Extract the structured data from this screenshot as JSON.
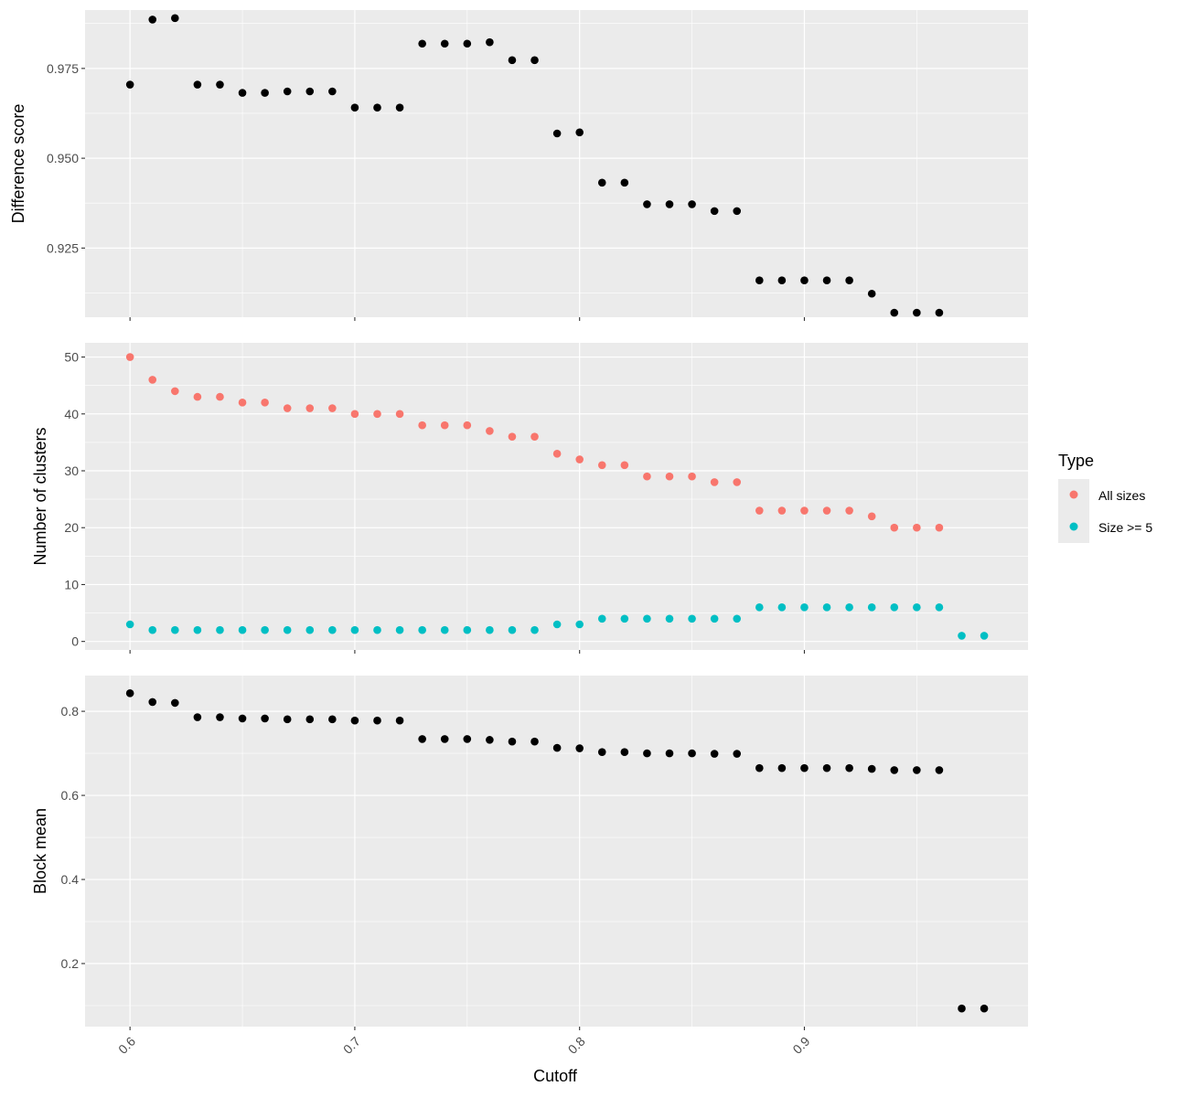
{
  "chart_data": {
    "type": "scatter",
    "xlabel": "Cutoff",
    "xlim": [
      0.58,
      0.9995
    ],
    "x_ticks": [
      0.6,
      0.7,
      0.8,
      0.9
    ],
    "x_tick_labels": [
      "0.6",
      "0.7",
      "0.8",
      "0.9"
    ],
    "panels": [
      {
        "id": "difference",
        "ylabel": "Difference score",
        "ylim": [
          0.90575,
          0.99125
        ],
        "y_ticks": [
          0.925,
          0.95,
          0.975
        ],
        "y_tick_labels": [
          "0.925",
          "0.950",
          "0.975"
        ],
        "series": [
          {
            "color": "#000000",
            "points": [
              [
                0.6,
                0.9705
              ],
              [
                0.61,
                0.9886
              ],
              [
                0.62,
                0.989
              ],
              [
                0.63,
                0.9705
              ],
              [
                0.64,
                0.9705
              ],
              [
                0.65,
                0.9682
              ],
              [
                0.66,
                0.9682
              ],
              [
                0.67,
                0.9686
              ],
              [
                0.68,
                0.9686
              ],
              [
                0.69,
                0.9686
              ],
              [
                0.7,
                0.9641
              ],
              [
                0.71,
                0.9641
              ],
              [
                0.72,
                0.9641
              ],
              [
                0.73,
                0.9819
              ],
              [
                0.74,
                0.9819
              ],
              [
                0.75,
                0.9819
              ],
              [
                0.76,
                0.9823
              ],
              [
                0.77,
                0.9773
              ],
              [
                0.78,
                0.9773
              ],
              [
                0.79,
                0.9569
              ],
              [
                0.8,
                0.9572
              ],
              [
                0.81,
                0.9432
              ],
              [
                0.82,
                0.9432
              ],
              [
                0.83,
                0.9372
              ],
              [
                0.84,
                0.9372
              ],
              [
                0.85,
                0.9372
              ],
              [
                0.86,
                0.9353
              ],
              [
                0.87,
                0.9353
              ],
              [
                0.88,
                0.916
              ],
              [
                0.89,
                0.916
              ],
              [
                0.9,
                0.916
              ],
              [
                0.91,
                0.916
              ],
              [
                0.92,
                0.916
              ],
              [
                0.93,
                0.9123
              ],
              [
                0.94,
                0.907
              ],
              [
                0.95,
                0.907
              ],
              [
                0.96,
                0.907
              ]
            ]
          }
        ]
      },
      {
        "id": "clusters",
        "ylabel": "Number of clusters",
        "ylim": [
          -1.5,
          52.5
        ],
        "y_ticks": [
          0,
          10,
          20,
          30,
          40,
          50
        ],
        "y_tick_labels": [
          "0",
          "10",
          "20",
          "30",
          "40",
          "50"
        ],
        "series": [
          {
            "name": "All sizes",
            "color": "#F8766D",
            "points": [
              [
                0.6,
                50
              ],
              [
                0.61,
                46
              ],
              [
                0.62,
                44
              ],
              [
                0.63,
                43
              ],
              [
                0.64,
                43
              ],
              [
                0.65,
                42
              ],
              [
                0.66,
                42
              ],
              [
                0.67,
                41
              ],
              [
                0.68,
                41
              ],
              [
                0.69,
                41
              ],
              [
                0.7,
                40
              ],
              [
                0.71,
                40
              ],
              [
                0.72,
                40
              ],
              [
                0.73,
                38
              ],
              [
                0.74,
                38
              ],
              [
                0.75,
                38
              ],
              [
                0.76,
                37
              ],
              [
                0.77,
                36
              ],
              [
                0.78,
                36
              ],
              [
                0.79,
                33
              ],
              [
                0.8,
                32
              ],
              [
                0.81,
                31
              ],
              [
                0.82,
                31
              ],
              [
                0.83,
                29
              ],
              [
                0.84,
                29
              ],
              [
                0.85,
                29
              ],
              [
                0.86,
                28
              ],
              [
                0.87,
                28
              ],
              [
                0.88,
                23
              ],
              [
                0.89,
                23
              ],
              [
                0.9,
                23
              ],
              [
                0.91,
                23
              ],
              [
                0.92,
                23
              ],
              [
                0.93,
                22
              ],
              [
                0.94,
                20
              ],
              [
                0.95,
                20
              ],
              [
                0.96,
                20
              ]
            ]
          },
          {
            "name": "Size >= 5",
            "color": "#00BFC4",
            "points": [
              [
                0.6,
                3
              ],
              [
                0.61,
                2
              ],
              [
                0.62,
                2
              ],
              [
                0.63,
                2
              ],
              [
                0.64,
                2
              ],
              [
                0.65,
                2
              ],
              [
                0.66,
                2
              ],
              [
                0.67,
                2
              ],
              [
                0.68,
                2
              ],
              [
                0.69,
                2
              ],
              [
                0.7,
                2
              ],
              [
                0.71,
                2
              ],
              [
                0.72,
                2
              ],
              [
                0.73,
                2
              ],
              [
                0.74,
                2
              ],
              [
                0.75,
                2
              ],
              [
                0.76,
                2
              ],
              [
                0.77,
                2
              ],
              [
                0.78,
                2
              ],
              [
                0.79,
                3
              ],
              [
                0.8,
                3
              ],
              [
                0.81,
                4
              ],
              [
                0.82,
                4
              ],
              [
                0.83,
                4
              ],
              [
                0.84,
                4
              ],
              [
                0.85,
                4
              ],
              [
                0.86,
                4
              ],
              [
                0.87,
                4
              ],
              [
                0.88,
                6
              ],
              [
                0.89,
                6
              ],
              [
                0.9,
                6
              ],
              [
                0.91,
                6
              ],
              [
                0.92,
                6
              ],
              [
                0.93,
                6
              ],
              [
                0.94,
                6
              ],
              [
                0.95,
                6
              ],
              [
                0.96,
                6
              ],
              [
                0.97,
                1
              ],
              [
                0.98,
                1
              ]
            ]
          }
        ]
      },
      {
        "id": "block",
        "ylabel": "Block mean",
        "ylim": [
          0.05,
          0.885
        ],
        "y_ticks": [
          0.2,
          0.4,
          0.6,
          0.8
        ],
        "y_tick_labels": [
          "0.2",
          "0.4",
          "0.6",
          "0.8"
        ],
        "series": [
          {
            "color": "#000000",
            "points": [
              [
                0.6,
                0.843
              ],
              [
                0.61,
                0.822
              ],
              [
                0.62,
                0.82
              ],
              [
                0.63,
                0.786
              ],
              [
                0.64,
                0.786
              ],
              [
                0.65,
                0.783
              ],
              [
                0.66,
                0.783
              ],
              [
                0.67,
                0.781
              ],
              [
                0.68,
                0.781
              ],
              [
                0.69,
                0.781
              ],
              [
                0.7,
                0.778
              ],
              [
                0.71,
                0.778
              ],
              [
                0.72,
                0.778
              ],
              [
                0.73,
                0.734
              ],
              [
                0.74,
                0.734
              ],
              [
                0.75,
                0.734
              ],
              [
                0.76,
                0.732
              ],
              [
                0.77,
                0.728
              ],
              [
                0.78,
                0.728
              ],
              [
                0.79,
                0.713
              ],
              [
                0.8,
                0.712
              ],
              [
                0.81,
                0.703
              ],
              [
                0.82,
                0.703
              ],
              [
                0.83,
                0.7
              ],
              [
                0.84,
                0.7
              ],
              [
                0.85,
                0.7
              ],
              [
                0.86,
                0.699
              ],
              [
                0.87,
                0.699
              ],
              [
                0.88,
                0.665
              ],
              [
                0.89,
                0.665
              ],
              [
                0.9,
                0.665
              ],
              [
                0.91,
                0.665
              ],
              [
                0.92,
                0.665
              ],
              [
                0.93,
                0.663
              ],
              [
                0.94,
                0.66
              ],
              [
                0.95,
                0.66
              ],
              [
                0.96,
                0.66
              ],
              [
                0.97,
                0.093
              ],
              [
                0.98,
                0.093
              ]
            ]
          }
        ]
      }
    ],
    "legend": {
      "title": "Type",
      "position": "right",
      "entries": [
        {
          "label": "All sizes",
          "color": "#F8766D"
        },
        {
          "label": "Size >= 5",
          "color": "#00BFC4"
        }
      ]
    },
    "grid": true
  }
}
